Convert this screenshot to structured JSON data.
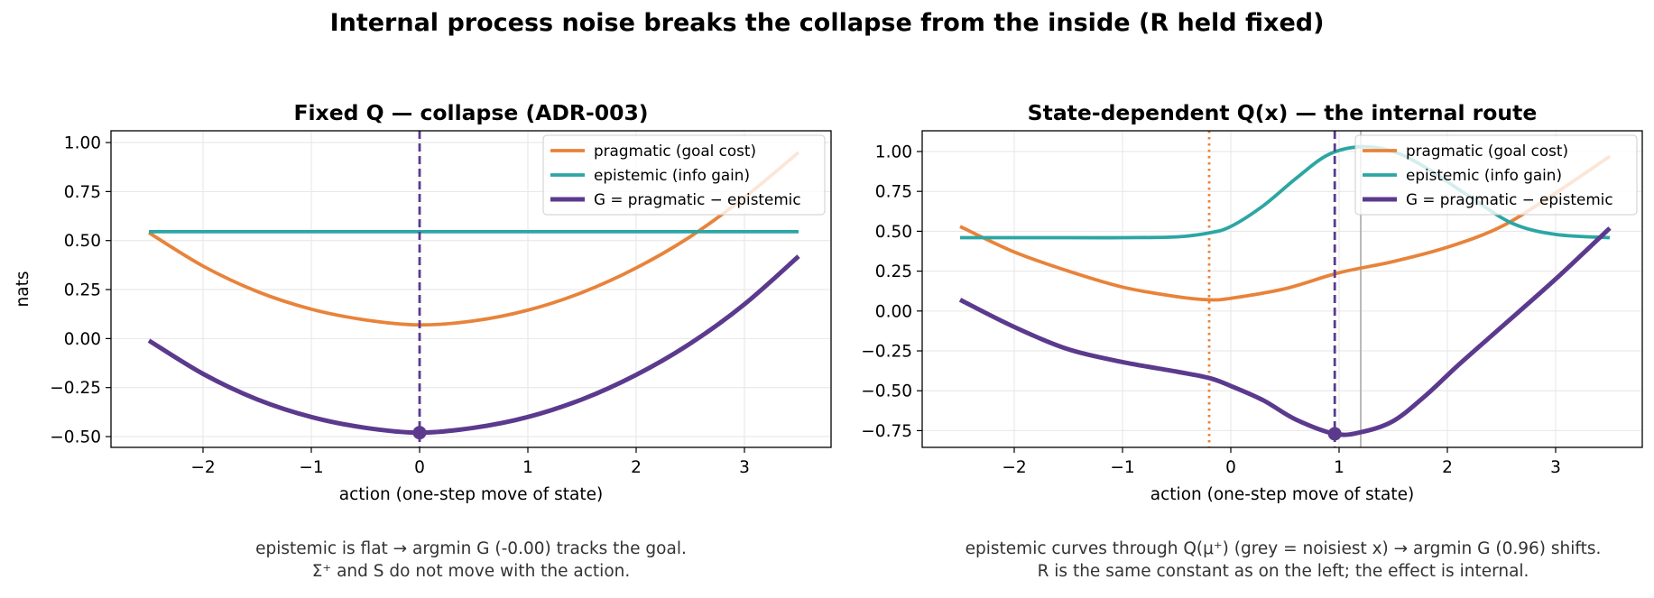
{
  "figure": {
    "suptitle": "Internal process noise breaks the collapse from the inside (R held fixed)"
  },
  "colors": {
    "pragmatic": "#E8833A",
    "epistemic": "#2CA6A4",
    "G": "#5B3A8E",
    "noisiest_marker": "#A9A9A9"
  },
  "chart_data": [
    {
      "type": "line",
      "title": "Fixed Q — collapse (ADR-003)",
      "xlabel": "action  (one-step move of state)",
      "ylabel": "nats",
      "xlim": [
        -2.85,
        3.8
      ],
      "ylim": [
        -0.555,
        1.06
      ],
      "xticks": [
        -2,
        -1,
        0,
        1,
        2,
        3
      ],
      "xtick_labels": [
        "−2",
        "−1",
        "0",
        "1",
        "2",
        "3"
      ],
      "yticks": [
        -0.5,
        -0.25,
        0,
        0.25,
        0.5,
        0.75,
        1.0
      ],
      "ytick_labels": [
        "−0.50",
        "−0.25",
        "0.00",
        "0.25",
        "0.50",
        "0.75",
        "1.00"
      ],
      "grid": true,
      "legend": "top-right",
      "series": [
        {
          "name": "pragmatic (goal cost)",
          "key": "pragmatic",
          "x": [
            -2.5,
            -2.0,
            -1.5,
            -1.0,
            -0.5,
            0.0,
            0.5,
            1.0,
            1.5,
            2.0,
            2.5,
            3.0,
            3.5
          ],
          "y": [
            0.54,
            0.37,
            0.24,
            0.15,
            0.095,
            0.07,
            0.09,
            0.145,
            0.235,
            0.36,
            0.52,
            0.72,
            0.95
          ]
        },
        {
          "name": "epistemic (info gain)",
          "key": "epistemic",
          "x": [
            -2.5,
            3.5
          ],
          "y": [
            0.545,
            0.545
          ]
        },
        {
          "name": "G = pragmatic − epistemic",
          "key": "G",
          "x": [
            -2.5,
            -2.0,
            -1.5,
            -1.0,
            -0.5,
            0.0,
            0.5,
            1.0,
            1.5,
            2.0,
            2.5,
            3.0,
            3.5
          ],
          "y": [
            -0.01,
            -0.18,
            -0.31,
            -0.4,
            -0.455,
            -0.48,
            -0.455,
            -0.4,
            -0.31,
            -0.185,
            -0.025,
            0.175,
            0.42
          ]
        }
      ],
      "argmin_line": {
        "x": 0.0,
        "key": "G",
        "style": "dashed"
      },
      "argmin_point": {
        "x": 0.0,
        "y": -0.48
      }
    },
    {
      "type": "line",
      "title": "State-dependent Q(x) — the internal route",
      "xlabel": "action  (one-step move of state)",
      "ylabel": "",
      "xlim": [
        -2.85,
        3.8
      ],
      "ylim": [
        -0.855,
        1.13
      ],
      "xticks": [
        -2,
        -1,
        0,
        1,
        2,
        3
      ],
      "xtick_labels": [
        "−2",
        "−1",
        "0",
        "1",
        "2",
        "3"
      ],
      "yticks": [
        -0.75,
        -0.5,
        -0.25,
        0,
        0.25,
        0.5,
        0.75,
        1.0
      ],
      "ytick_labels": [
        "−0.75",
        "−0.50",
        "−0.25",
        "0.00",
        "0.25",
        "0.50",
        "0.75",
        "1.00"
      ],
      "grid": true,
      "legend": "top-right",
      "series": [
        {
          "name": "pragmatic (goal cost)",
          "key": "pragmatic",
          "x": [
            -2.5,
            -2.0,
            -1.5,
            -1.0,
            -0.5,
            -0.2,
            0.0,
            0.5,
            1.0,
            1.5,
            2.0,
            2.5,
            3.0,
            3.5
          ],
          "y": [
            0.53,
            0.37,
            0.25,
            0.15,
            0.09,
            0.07,
            0.08,
            0.14,
            0.24,
            0.31,
            0.4,
            0.53,
            0.74,
            0.97
          ]
        },
        {
          "name": "epistemic (info gain)",
          "key": "epistemic",
          "x": [
            -2.5,
            -1.5,
            -1.0,
            -0.5,
            -0.2,
            0.0,
            0.3,
            0.6,
            0.9,
            1.2,
            1.5,
            1.8,
            2.2,
            2.6,
            3.0,
            3.5
          ],
          "y": [
            0.46,
            0.46,
            0.46,
            0.465,
            0.49,
            0.53,
            0.66,
            0.83,
            0.98,
            1.03,
            1.0,
            0.9,
            0.72,
            0.55,
            0.48,
            0.46
          ]
        },
        {
          "name": "G = pragmatic − epistemic",
          "key": "G",
          "x": [
            -2.5,
            -2.0,
            -1.5,
            -1.0,
            -0.5,
            -0.2,
            0.0,
            0.3,
            0.6,
            0.96,
            1.2,
            1.5,
            1.8,
            2.1,
            2.5,
            3.0,
            3.5
          ],
          "y": [
            0.07,
            -0.1,
            -0.24,
            -0.32,
            -0.38,
            -0.42,
            -0.47,
            -0.56,
            -0.68,
            -0.77,
            -0.76,
            -0.69,
            -0.53,
            -0.34,
            -0.1,
            0.2,
            0.52
          ]
        }
      ],
      "goal_line": {
        "x": -0.2,
        "key": "pragmatic",
        "style": "dotted"
      },
      "argmin_line": {
        "x": 0.96,
        "key": "G",
        "style": "dashed"
      },
      "noisiest_line": {
        "x": 1.2
      },
      "argmin_point": {
        "x": 0.96,
        "y": -0.77
      }
    }
  ],
  "captions": [
    {
      "line1": "epistemic is flat → argmin G (-0.00) tracks the goal.",
      "line2": "Σ⁺ and S do not move with the action."
    },
    {
      "line1": "epistemic curves through Q(μ⁺) (grey = noisiest x) → argmin G (0.96) shifts.",
      "line2": "R is the same constant as on the left; the effect is internal."
    }
  ]
}
